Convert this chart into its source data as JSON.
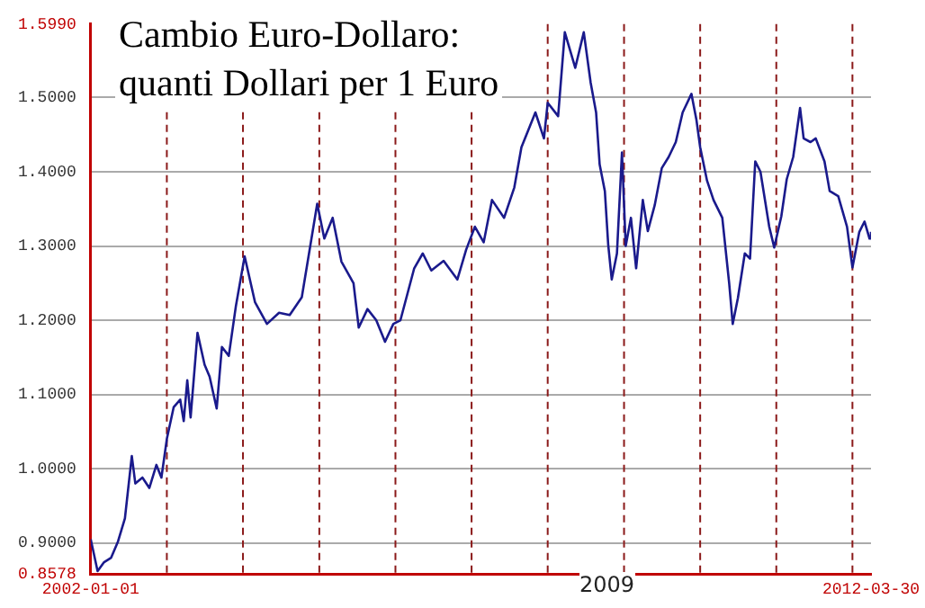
{
  "chart_data": {
    "type": "line",
    "title": "Cambio Euro-Dollaro:\nquanti Dollari per 1 Euro",
    "x": [
      "2002-01-01",
      "2002-02-03",
      "2002-03-06",
      "2002-04-09",
      "2002-05-12",
      "2002-06-14",
      "2002-07-17",
      "2002-08-03",
      "2002-09-06",
      "2002-10-09",
      "2002-11-12",
      "2002-12-06",
      "2003-01-01",
      "2003-02-03",
      "2003-03-06",
      "2003-03-23",
      "2003-04-09",
      "2003-04-25",
      "2003-05-28",
      "2003-07-01",
      "2003-07-25",
      "2003-08-28",
      "2003-09-22",
      "2003-10-25",
      "2003-11-28",
      "2004-01-09",
      "2004-02-28",
      "2004-04-25",
      "2004-06-22",
      "2004-08-12",
      "2004-10-09",
      "2004-12-22",
      "2005-01-25",
      "2005-03-06",
      "2005-04-17",
      "2005-06-14",
      "2005-07-09",
      "2005-08-20",
      "2005-10-01",
      "2005-11-12",
      "2005-12-22",
      "2006-01-25",
      "2006-04-01",
      "2006-05-12",
      "2006-06-22",
      "2006-08-20",
      "2006-10-25",
      "2006-12-06",
      "2007-01-17",
      "2007-02-28",
      "2007-04-09",
      "2007-06-06",
      "2007-07-25",
      "2007-08-28",
      "2007-11-03",
      "2007-12-14",
      "2008-01-01",
      "2008-02-20",
      "2008-03-23",
      "2008-04-17",
      "2008-05-12",
      "2008-06-22",
      "2008-07-25",
      "2008-08-20",
      "2008-09-06",
      "2008-10-01",
      "2008-10-17",
      "2008-11-03",
      "2008-11-28",
      "2008-12-22",
      "2009-01-09",
      "2009-02-03",
      "2009-02-28",
      "2009-04-01",
      "2009-04-25",
      "2009-05-28",
      "2009-07-01",
      "2009-08-03",
      "2009-09-06",
      "2009-10-09",
      "2009-11-20",
      "2009-12-14",
      "2010-01-01",
      "2010-02-03",
      "2010-03-06",
      "2010-04-17",
      "2010-05-20",
      "2010-06-06",
      "2010-07-01",
      "2010-08-03",
      "2010-08-28",
      "2010-09-22",
      "2010-10-17",
      "2010-11-28",
      "2010-12-22",
      "2011-01-25",
      "2011-02-20",
      "2011-03-23",
      "2011-04-25",
      "2011-05-12",
      "2011-06-14",
      "2011-07-09",
      "2011-08-20",
      "2011-09-14",
      "2011-10-25",
      "2011-12-06",
      "2012-01-01",
      "2012-02-03",
      "2012-02-28",
      "2012-03-23",
      "2012-03-30"
    ],
    "series": [
      {
        "color": "#1a1a8c",
        "values": [
          0.905,
          0.862,
          0.874,
          0.88,
          0.902,
          0.933,
          1.017,
          0.98,
          0.988,
          0.974,
          1.005,
          0.988,
          1.04,
          1.083,
          1.093,
          1.064,
          1.119,
          1.069,
          1.183,
          1.14,
          1.124,
          1.081,
          1.164,
          1.152,
          1.219,
          1.286,
          1.224,
          1.195,
          1.21,
          1.207,
          1.231,
          1.357,
          1.31,
          1.338,
          1.279,
          1.25,
          1.19,
          1.215,
          1.2,
          1.171,
          1.195,
          1.2,
          1.27,
          1.29,
          1.267,
          1.28,
          1.255,
          1.295,
          1.326,
          1.305,
          1.362,
          1.338,
          1.379,
          1.433,
          1.48,
          1.445,
          1.493,
          1.475,
          1.588,
          1.564,
          1.54,
          1.588,
          1.52,
          1.48,
          1.41,
          1.374,
          1.302,
          1.255,
          1.29,
          1.426,
          1.3,
          1.338,
          1.27,
          1.362,
          1.32,
          1.355,
          1.405,
          1.42,
          1.44,
          1.48,
          1.505,
          1.47,
          1.433,
          1.388,
          1.362,
          1.338,
          1.25,
          1.195,
          1.23,
          1.29,
          1.283,
          1.414,
          1.4,
          1.326,
          1.298,
          1.34,
          1.39,
          1.42,
          1.486,
          1.445,
          1.44,
          1.445,
          1.414,
          1.374,
          1.367,
          1.326,
          1.271,
          1.319,
          1.333,
          1.31,
          1.319
        ]
      }
    ],
    "xlim": [
      "2002-01-01",
      "2012-03-30"
    ],
    "xticks": [
      {
        "value": "2002-01-01",
        "label": "2002-01-01"
      },
      {
        "value": "2012-03-30",
        "label": "2012-03-30"
      }
    ],
    "annotations": [
      "2009"
    ],
    "ylim": [
      0.8578,
      1.599
    ],
    "yticks": [
      {
        "value": 0.8578,
        "label": "0.8578"
      },
      {
        "value": 0.9,
        "label": "0.9000"
      },
      {
        "value": 1.0,
        "label": "1.0000"
      },
      {
        "value": 1.1,
        "label": "1.1000"
      },
      {
        "value": 1.2,
        "label": "1.2000"
      },
      {
        "value": 1.3,
        "label": "1.3000"
      },
      {
        "value": 1.4,
        "label": "1.4000"
      },
      {
        "value": 1.5,
        "label": "1.5000"
      },
      {
        "value": 1.599,
        "label": "1.5990"
      }
    ],
    "grid": "y",
    "ref_lines": [
      {
        "axis": "x",
        "value": "2003-01-01",
        "color": "#8b1a1a",
        "line_style": "dashed"
      },
      {
        "axis": "x",
        "value": "2004-01-01",
        "color": "#8b1a1a",
        "line_style": "dashed"
      },
      {
        "axis": "x",
        "value": "2005-01-01",
        "color": "#8b1a1a",
        "line_style": "dashed"
      },
      {
        "axis": "x",
        "value": "2006-01-01",
        "color": "#8b1a1a",
        "line_style": "dashed"
      },
      {
        "axis": "x",
        "value": "2007-01-01",
        "color": "#8b1a1a",
        "line_style": "dashed"
      },
      {
        "axis": "x",
        "value": "2008-01-01",
        "color": "#8b1a1a",
        "line_style": "dashed"
      },
      {
        "axis": "x",
        "value": "2009-01-01",
        "color": "#8b1a1a",
        "line_style": "dashed"
      },
      {
        "axis": "x",
        "value": "2010-01-01",
        "color": "#8b1a1a",
        "line_style": "dashed"
      },
      {
        "axis": "x",
        "value": "2011-01-01",
        "color": "#8b1a1a",
        "line_style": "dashed"
      },
      {
        "axis": "x",
        "value": "2012-01-01",
        "color": "#8b1a1a",
        "line_style": "dashed"
      }
    ],
    "marker": "none",
    "line_style": "solid",
    "legend": false
  }
}
